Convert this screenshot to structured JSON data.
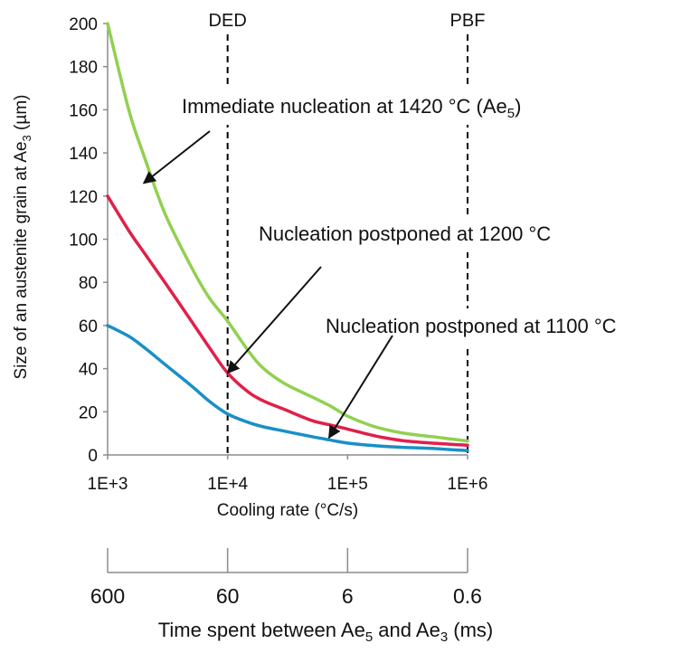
{
  "chart_data": {
    "type": "line",
    "x_scale": "log",
    "xlim": [
      1000,
      1000000
    ],
    "ylim": [
      0,
      200
    ],
    "x_tick_labels": [
      "1E+3",
      "1E+4",
      "1E+5",
      "1E+6"
    ],
    "x_tick_values": [
      1000,
      10000,
      100000,
      1000000
    ],
    "y_ticks": [
      0,
      20,
      40,
      60,
      80,
      100,
      120,
      140,
      160,
      180,
      200
    ],
    "xlabel": "Cooling rate (°C/s)",
    "ylabel_parts": {
      "main": "Size of an austenite grain at Ae",
      "sub": "3",
      "tail": " (µm)"
    },
    "grid": false,
    "reference_lines": [
      {
        "label": "DED",
        "x": 10000
      },
      {
        "label": "PBF",
        "x": 1000000
      }
    ],
    "series": [
      {
        "color": "#92d050",
        "x": [
          1000,
          1500,
          2000,
          3000,
          5000,
          7000,
          10000,
          15000,
          20000,
          30000,
          50000,
          70000,
          100000,
          150000,
          200000,
          300000,
          500000,
          700000,
          1000000
        ],
        "y": [
          200,
          160,
          139,
          112,
          87,
          73,
          62,
          48,
          40,
          33,
          27,
          23,
          18,
          14,
          12,
          10,
          8.5,
          7.5,
          6.5
        ]
      },
      {
        "color": "#e0204a",
        "x": [
          1000,
          1500,
          2000,
          3000,
          5000,
          7000,
          10000,
          15000,
          20000,
          30000,
          50000,
          70000,
          100000,
          150000,
          200000,
          300000,
          500000,
          700000,
          1000000
        ],
        "y": [
          120,
          104,
          94,
          80,
          62,
          50,
          38,
          29,
          25,
          21,
          16,
          14,
          12,
          9.5,
          8,
          6.5,
          5.5,
          5,
          4.5
        ]
      },
      {
        "color": "#1a8fc6",
        "x": [
          1000,
          1500,
          2000,
          3000,
          5000,
          7000,
          10000,
          15000,
          20000,
          30000,
          50000,
          70000,
          100000,
          150000,
          200000,
          300000,
          500000,
          700000,
          1000000
        ],
        "y": [
          60,
          55,
          50,
          42,
          32,
          25,
          19,
          15,
          13,
          11,
          8.5,
          7,
          5.5,
          4.5,
          4,
          3.5,
          3,
          2.5,
          2
        ]
      }
    ],
    "annotations": [
      {
        "text_main": "Immediate nucleation  at 1420 °C (Ae",
        "text_sub": "5",
        "text_tail": ")",
        "arrow_to": [
          2000,
          126
        ]
      },
      {
        "text_main": "Nucleation  postponed at 1200 °C",
        "text_sub": "",
        "text_tail": "",
        "arrow_to": [
          10000,
          38
        ]
      },
      {
        "text_main": "Nucleation  postponed at 1100 °C",
        "text_sub": "",
        "text_tail": "",
        "arrow_to": [
          70000,
          8
        ]
      }
    ],
    "secondary_axis": {
      "tick_labels": [
        "600",
        "60",
        "6",
        "0.6"
      ],
      "title_parts": {
        "a": "Time spent between Ae",
        "sub1": "5",
        "b": " and Ae",
        "sub2": "3",
        "c": " (ms)"
      }
    }
  }
}
